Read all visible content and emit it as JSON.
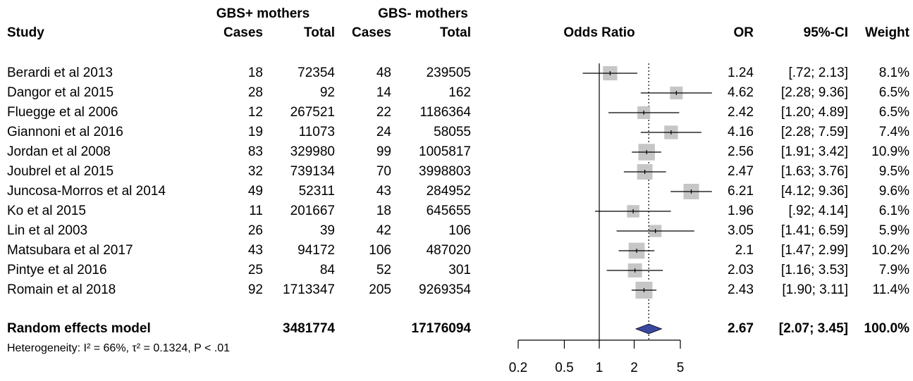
{
  "chart_data": {
    "type": "forest",
    "headers": {
      "gbs_pos": "GBS+ mothers",
      "gbs_neg": "GBS- mothers",
      "study": "Study",
      "gbs_pos_cases": "Cases",
      "gbs_pos_total": "Total",
      "gbs_neg_cases": "Cases",
      "gbs_neg_total": "Total",
      "plot": "Odds Ratio",
      "or": "OR",
      "ci": "95%-CI",
      "weight": "Weight"
    },
    "studies": [
      {
        "study": "Berardi et al 2013",
        "gbs_pos_cases": 18,
        "gbs_pos_total": 72354,
        "gbs_neg_cases": 48,
        "gbs_neg_total": 239505,
        "or": 1.24,
        "ci_lower": 0.72,
        "ci_upper": 2.13,
        "ci_label": "[.72; 2.13]",
        "weight": 8.1,
        "weight_label": "8.1%"
      },
      {
        "study": "Dangor et al 2015",
        "gbs_pos_cases": 28,
        "gbs_pos_total": 92,
        "gbs_neg_cases": 14,
        "gbs_neg_total": 162,
        "or": 4.62,
        "ci_lower": 2.28,
        "ci_upper": 9.36,
        "ci_label": "[2.28; 9.36]",
        "weight": 6.5,
        "weight_label": "6.5%"
      },
      {
        "study": "Fluegge et al 2006",
        "gbs_pos_cases": 12,
        "gbs_pos_total": 267521,
        "gbs_neg_cases": 22,
        "gbs_neg_total": 1186364,
        "or": 2.42,
        "ci_lower": 1.2,
        "ci_upper": 4.89,
        "ci_label": "[1.20; 4.89]",
        "weight": 6.5,
        "weight_label": "6.5%"
      },
      {
        "study": "Giannoni et al 2016",
        "gbs_pos_cases": 19,
        "gbs_pos_total": 11073,
        "gbs_neg_cases": 24,
        "gbs_neg_total": 58055,
        "or": 4.16,
        "ci_lower": 2.28,
        "ci_upper": 7.59,
        "ci_label": "[2.28; 7.59]",
        "weight": 7.4,
        "weight_label": "7.4%"
      },
      {
        "study": "Jordan et al 2008",
        "gbs_pos_cases": 83,
        "gbs_pos_total": 329980,
        "gbs_neg_cases": 99,
        "gbs_neg_total": 1005817,
        "or": 2.56,
        "ci_lower": 1.91,
        "ci_upper": 3.42,
        "ci_label": "[1.91; 3.42]",
        "weight": 10.9,
        "weight_label": "10.9%"
      },
      {
        "study": "Joubrel et al 2015",
        "gbs_pos_cases": 32,
        "gbs_pos_total": 739134,
        "gbs_neg_cases": 70,
        "gbs_neg_total": 3998803,
        "or": 2.47,
        "ci_lower": 1.63,
        "ci_upper": 3.76,
        "ci_label": "[1.63; 3.76]",
        "weight": 9.5,
        "weight_label": "9.5%"
      },
      {
        "study": "Juncosa-Morros et al 2014",
        "gbs_pos_cases": 49,
        "gbs_pos_total": 52311,
        "gbs_neg_cases": 43,
        "gbs_neg_total": 284952,
        "or": 6.21,
        "ci_lower": 4.12,
        "ci_upper": 9.36,
        "ci_label": "[4.12; 9.36]",
        "weight": 9.6,
        "weight_label": "9.6%"
      },
      {
        "study": "Ko et al 2015",
        "gbs_pos_cases": 11,
        "gbs_pos_total": 201667,
        "gbs_neg_cases": 18,
        "gbs_neg_total": 645655,
        "or": 1.96,
        "ci_lower": 0.92,
        "ci_upper": 4.14,
        "ci_label": "[.92; 4.14]",
        "weight": 6.1,
        "weight_label": "6.1%"
      },
      {
        "study": "Lin et al 2003",
        "gbs_pos_cases": 26,
        "gbs_pos_total": 39,
        "gbs_neg_cases": 42,
        "gbs_neg_total": 106,
        "or": 3.05,
        "ci_lower": 1.41,
        "ci_upper": 6.59,
        "ci_label": "[1.41; 6.59]",
        "weight": 5.9,
        "weight_label": "5.9%"
      },
      {
        "study": "Matsubara et al 2017",
        "gbs_pos_cases": 43,
        "gbs_pos_total": 94172,
        "gbs_neg_cases": 106,
        "gbs_neg_total": 487020,
        "or": 2.1,
        "ci_lower": 1.47,
        "ci_upper": 2.99,
        "ci_label": "[1.47; 2.99]",
        "weight": 10.2,
        "weight_label": "10.2%"
      },
      {
        "study": "Pintye et al 2016",
        "gbs_pos_cases": 25,
        "gbs_pos_total": 84,
        "gbs_neg_cases": 52,
        "gbs_neg_total": 301,
        "or": 2.03,
        "ci_lower": 1.16,
        "ci_upper": 3.53,
        "ci_label": "[1.16; 3.53]",
        "weight": 7.9,
        "weight_label": "7.9%"
      },
      {
        "study": "Romain et al 2018",
        "gbs_pos_cases": 92,
        "gbs_pos_total": 1713347,
        "gbs_neg_cases": 205,
        "gbs_neg_total": 9269354,
        "or": 2.43,
        "ci_lower": 1.9,
        "ci_upper": 3.11,
        "ci_label": "[1.90; 3.11]",
        "weight": 11.4,
        "weight_label": "11.4%"
      }
    ],
    "model": {
      "study": "Random effects model",
      "gbs_pos_total": 3481774,
      "gbs_neg_total": 17176094,
      "or": 2.67,
      "ci_lower": 2.07,
      "ci_upper": 3.45,
      "ci_label": "[2.07; 3.45]",
      "weight": 100.0,
      "weight_label": "100.0%",
      "color": "#3a48a0"
    },
    "heterogeneity": "Heterogeneity: I² = 66%, τ² = 0.1324, P < .01",
    "square_color": "#c6c6c6",
    "x_scale": "log",
    "xlim": [
      0.2,
      5
    ],
    "xticks": [
      0.2,
      0.5,
      1,
      2,
      5
    ],
    "reference_line": 1
  }
}
